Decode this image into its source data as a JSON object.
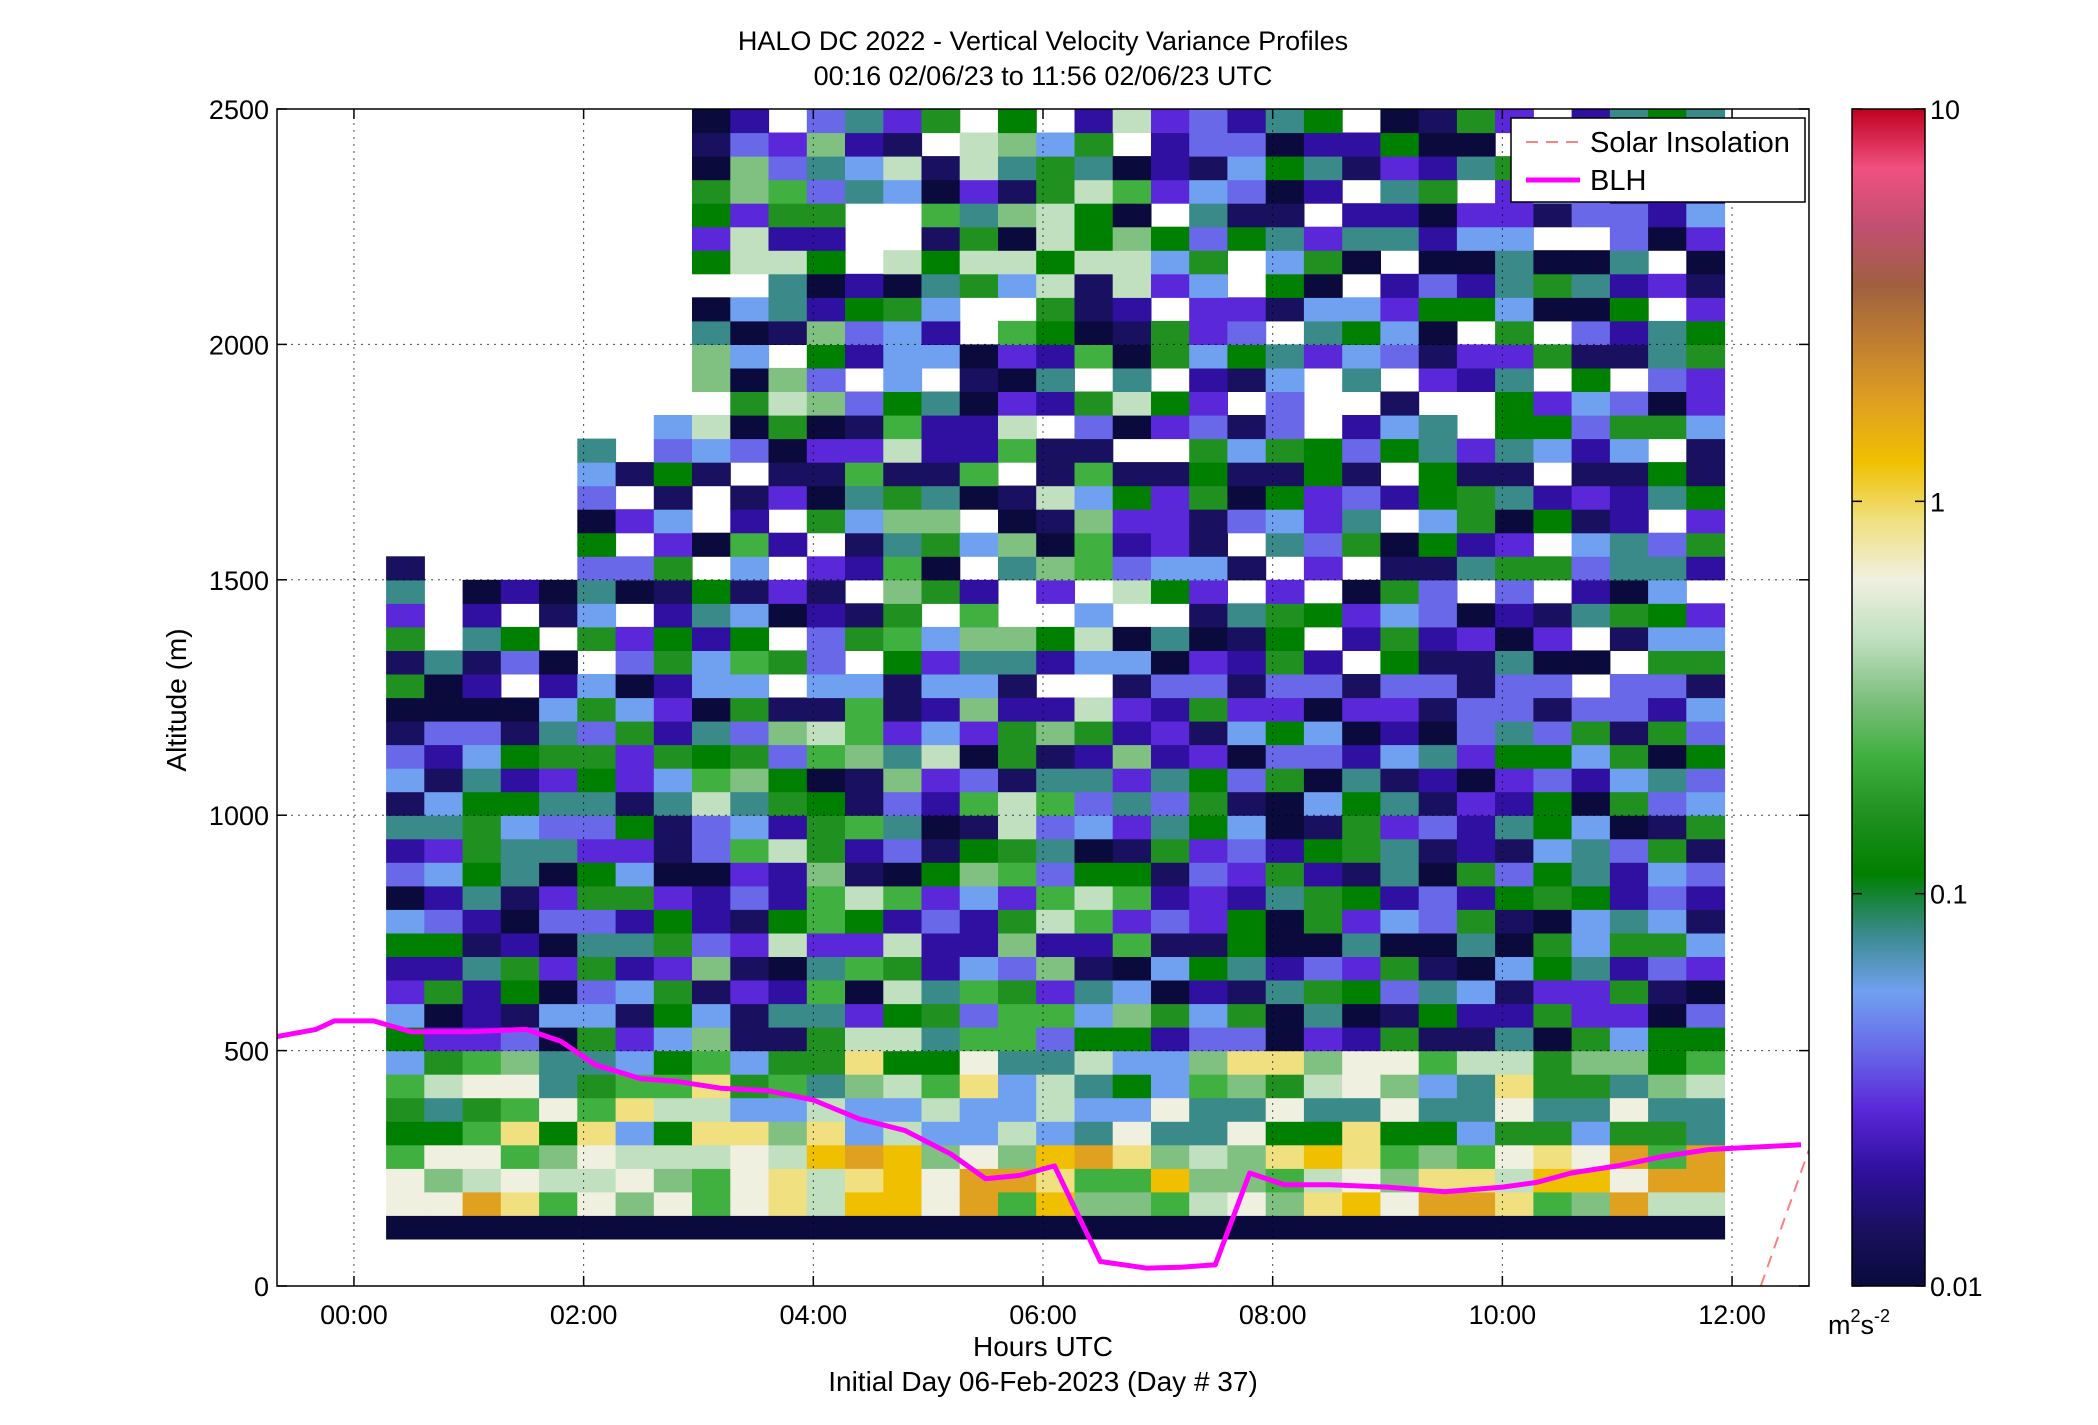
{
  "chart_data": {
    "type": "heatmap",
    "title": "HALO DC 2022 - Vertical Velocity Variance Profiles",
    "subtitle": "00:16 02/06/23 to 11:56 02/06/23  UTC",
    "xlabel": "Hours UTC",
    "xlabel2": "Initial Day 06-Feb-2023 (Day # 37)",
    "ylabel": "Altitude (m)",
    "x_ticks": [
      "00:00",
      "02:00",
      "04:00",
      "06:00",
      "08:00",
      "10:00",
      "12:00"
    ],
    "x_tick_hours": [
      0,
      2,
      4,
      6,
      8,
      10,
      12
    ],
    "xlim_hours": [
      -0.67,
      12.67
    ],
    "y_ticks": [
      "0",
      "500",
      "1000",
      "1500",
      "2000",
      "2500"
    ],
    "ylim": [
      0,
      2500
    ],
    "grid": true,
    "colorbar": {
      "scale": "log",
      "range": [
        0.01,
        10
      ],
      "ticks": [
        "0.01",
        "0.1",
        "1",
        "10"
      ],
      "unit_base": "m",
      "unit_sup1": "2",
      "unit_mid": "s",
      "unit_sup2": "-2",
      "colors": [
        "#0a0a3c",
        "#1a1060",
        "#3010a0",
        "#5a28d8",
        "#6868e8",
        "#70a0f0",
        "#3a8a8a",
        "#008000",
        "#209020",
        "#40b040",
        "#80c080",
        "#c0e0c0",
        "#f0f0e0",
        "#f0e080",
        "#f0c000",
        "#e0a020",
        "#c08030",
        "#a06040",
        "#c05070",
        "#f05080",
        "#c00020"
      ]
    },
    "legend": {
      "placement": "top-right",
      "entries": [
        {
          "label": "Solar Insolation",
          "color": "#ff8080",
          "style": "dashed"
        },
        {
          "label": "BLH",
          "color": "#ff00ff",
          "style": "solid"
        }
      ]
    },
    "heatmap": {
      "x_start_hours": 0.28,
      "bin_hours": 0.333,
      "y_start_m": 100,
      "bin_m": 50,
      "col_ranges_m": [
        [
          100,
          1550
        ],
        [
          100,
          1350
        ],
        [
          100,
          1500
        ],
        [
          100,
          1500
        ],
        [
          100,
          1500
        ],
        [
          100,
          1800
        ],
        [
          100,
          1800
        ],
        [
          100,
          1850
        ],
        [
          100,
          2500
        ],
        [
          100,
          2500
        ],
        [
          100,
          2500
        ],
        [
          100,
          2500
        ],
        [
          100,
          2500
        ],
        [
          100,
          2500
        ],
        [
          100,
          2500
        ],
        [
          100,
          2500
        ],
        [
          100,
          2500
        ],
        [
          100,
          2500
        ],
        [
          100,
          2500
        ],
        [
          100,
          2500
        ],
        [
          100,
          2500
        ],
        [
          100,
          2500
        ],
        [
          100,
          2500
        ],
        [
          100,
          2500
        ],
        [
          100,
          2500
        ],
        [
          100,
          2500
        ],
        [
          100,
          2500
        ],
        [
          100,
          2500
        ],
        [
          100,
          2500
        ],
        [
          100,
          2500
        ],
        [
          100,
          2500
        ],
        [
          100,
          2500
        ],
        [
          100,
          2500
        ],
        [
          100,
          2500
        ],
        [
          100,
          2500
        ]
      ]
    },
    "series": [
      {
        "name": "BLH",
        "x_hours": [
          -0.67,
          -0.33,
          -0.17,
          0.17,
          0.5,
          1.0,
          1.5,
          1.8,
          2.1,
          2.5,
          2.8,
          3.2,
          3.6,
          4.0,
          4.4,
          4.8,
          5.2,
          5.5,
          5.8,
          6.1,
          6.5,
          6.9,
          7.2,
          7.5,
          7.8,
          8.1,
          8.5,
          9.0,
          9.5,
          10.0,
          10.3,
          10.6,
          11.0,
          11.4,
          11.8,
          12.2,
          12.6
        ],
        "y_m": [
          530,
          545,
          563,
          563,
          540,
          540,
          545,
          520,
          470,
          440,
          435,
          420,
          415,
          395,
          355,
          330,
          280,
          228,
          235,
          255,
          52,
          38,
          40,
          45,
          240,
          215,
          215,
          210,
          200,
          210,
          220,
          240,
          255,
          275,
          290,
          295,
          300
        ]
      },
      {
        "name": "Solar Insolation",
        "x_hours": [
          12.25,
          12.67
        ],
        "y_m": [
          0,
          290
        ]
      }
    ]
  }
}
